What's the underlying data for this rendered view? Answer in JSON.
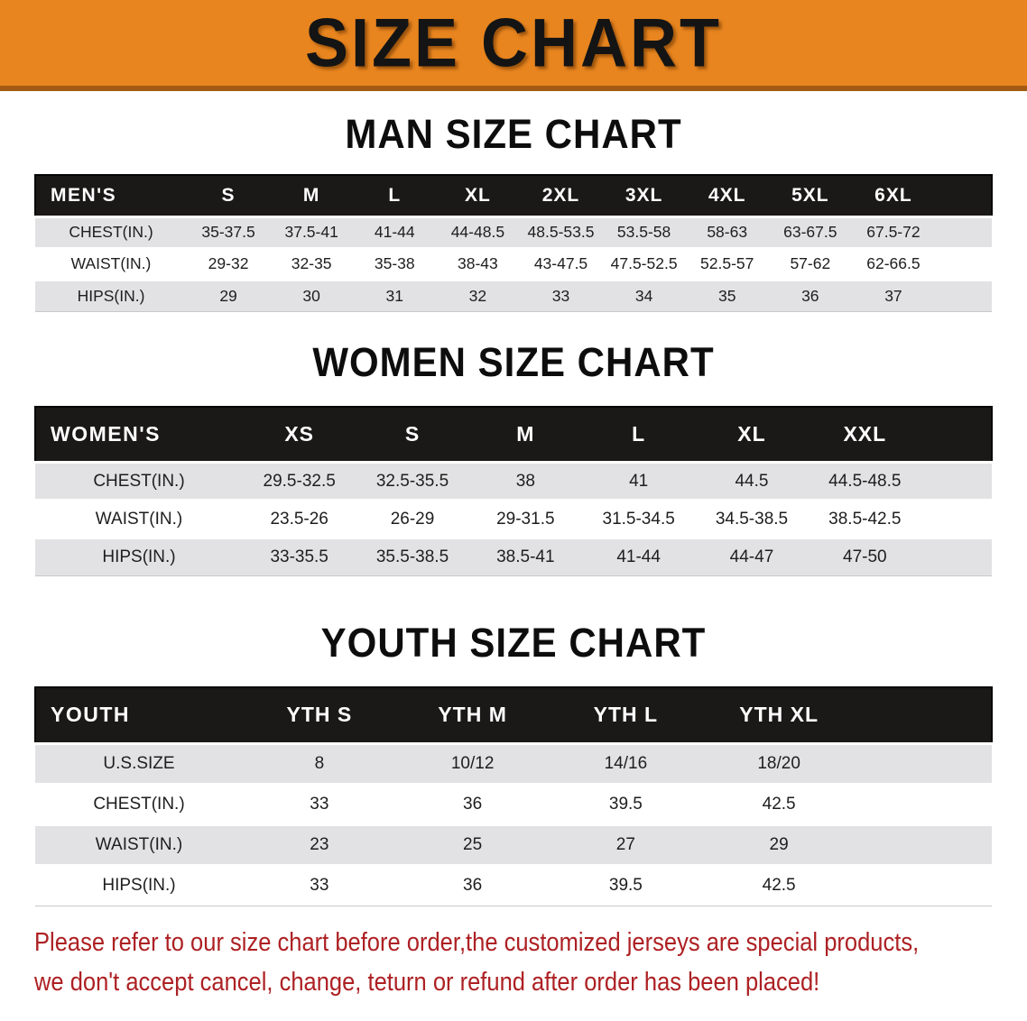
{
  "banner": {
    "title": "SIZE CHART"
  },
  "sections": [
    {
      "id": "men",
      "heading": "MAN SIZE CHART",
      "columns": [
        "MEN'S",
        "S",
        "M",
        "L",
        "XL",
        "2XL",
        "3XL",
        "4XL",
        "5XL",
        "6XL"
      ],
      "rows": [
        {
          "label": "CHEST(IN.)",
          "values": [
            "35-37.5",
            "37.5-41",
            "41-44",
            "44-48.5",
            "48.5-53.5",
            "53.5-58",
            "58-63",
            "63-67.5",
            "67.5-72"
          ]
        },
        {
          "label": "WAIST(IN.)",
          "values": [
            "29-32",
            "32-35",
            "35-38",
            "38-43",
            "43-47.5",
            "47.5-52.5",
            "52.5-57",
            "57-62",
            "62-66.5"
          ]
        },
        {
          "label": "HIPS(IN.)",
          "values": [
            "29",
            "30",
            "31",
            "32",
            "33",
            "34",
            "35",
            "36",
            "37"
          ]
        }
      ]
    },
    {
      "id": "women",
      "heading": "WOMEN SIZE CHART",
      "columns": [
        "WOMEN'S",
        "XS",
        "S",
        "M",
        "L",
        "XL",
        "XXL"
      ],
      "rows": [
        {
          "label": "CHEST(IN.)",
          "values": [
            "29.5-32.5",
            "32.5-35.5",
            "38",
            "41",
            "44.5",
            "44.5-48.5"
          ]
        },
        {
          "label": "WAIST(IN.)",
          "values": [
            "23.5-26",
            "26-29",
            "29-31.5",
            "31.5-34.5",
            "34.5-38.5",
            "38.5-42.5"
          ]
        },
        {
          "label": "HIPS(IN.)",
          "values": [
            "33-35.5",
            "35.5-38.5",
            "38.5-41",
            "41-44",
            "44-47",
            "47-50"
          ]
        }
      ]
    },
    {
      "id": "youth",
      "heading": "YOUTH SIZE CHART",
      "columns": [
        "YOUTH",
        "YTH S",
        "YTH M",
        "YTH L",
        "YTH XL"
      ],
      "rows": [
        {
          "label": "U.S.SIZE",
          "values": [
            "8",
            "10/12",
            "14/16",
            "18/20"
          ]
        },
        {
          "label": "CHEST(IN.)",
          "values": [
            "33",
            "36",
            "39.5",
            "42.5"
          ]
        },
        {
          "label": "WAIST(IN.)",
          "values": [
            "23",
            "25",
            "27",
            "29"
          ]
        },
        {
          "label": "HIPS(IN.)",
          "values": [
            "33",
            "36",
            "39.5",
            "42.5"
          ]
        }
      ]
    }
  ],
  "footer": {
    "line1": "Please refer to our size chart before order,the customized jerseys are special products,",
    "line2": "we don't accept cancel, change, teturn or refund after order has been placed!"
  },
  "colors": {
    "banner_bg": "#E8851F",
    "banner_edge": "#A35A12",
    "banner_title_text": "#141414",
    "header_bar": "#1B1818",
    "header_text": "#FFFFFF",
    "row_gray": "#E2E2E4",
    "row_white": "#FFFFFF",
    "body_text": "#1E1E1E",
    "notice_text": "#AD2023"
  }
}
